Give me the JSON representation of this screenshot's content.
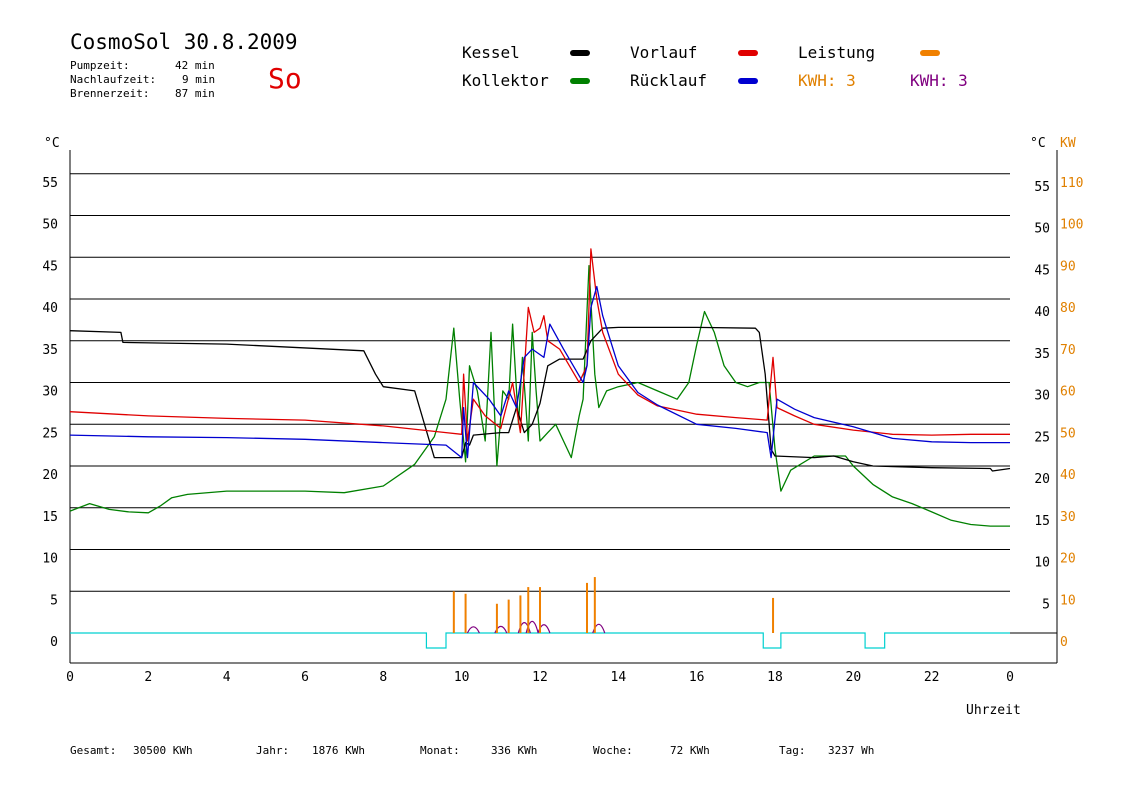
{
  "header": {
    "title": "CosmoSol 30.8.2009",
    "pumpzeit_label": "Pumpzeit:",
    "pumpzeit_value": "42 min",
    "nachlaufzeit_label": "Nachlaufzeit:",
    "nachlaufzeit_value": "9 min",
    "brennerzeit_label": "Brennerzeit:",
    "brennerzeit_value": "87 min",
    "day": "So"
  },
  "legend": {
    "kessel": "Kessel",
    "kollektor": "Kollektor",
    "vorlauf": "Vorlauf",
    "ruecklauf": "Rücklauf",
    "leistung": "Leistung",
    "kwh1": "KWH: 3",
    "kwh2": "KWH: 3"
  },
  "colors": {
    "kessel": "#000000",
    "kollektor": "#008000",
    "vorlauf": "#e00000",
    "ruecklauf": "#0000d0",
    "leistung": "#f08000",
    "kwh_orange": "#e08000",
    "kwh_purple": "#800080",
    "baseline": "#00d0d0"
  },
  "footer": {
    "gesamt_label": "Gesamt:",
    "gesamt_value": "30500 KWh",
    "jahr_label": "Jahr:",
    "jahr_value": "1876 KWh",
    "monat_label": "Monat:",
    "monat_value": "336 KWh",
    "woche_label": "Woche:",
    "woche_value": "72 KWh",
    "tag_label": "Tag:",
    "tag_value": "3237 Wh"
  },
  "chart_data": {
    "type": "line",
    "xlabel": "Uhrzeit",
    "ylabel_left": "°C",
    "ylabel_right_1": "°C",
    "ylabel_right_2": "KW",
    "x_ticks": [
      "0",
      "2",
      "4",
      "6",
      "8",
      "10",
      "12",
      "14",
      "16",
      "18",
      "20",
      "22",
      "0"
    ],
    "y_ticks_left": [
      "0",
      "5",
      "10",
      "15",
      "20",
      "25",
      "30",
      "35",
      "40",
      "45",
      "50",
      "55"
    ],
    "y_ticks_right_c": [
      "5",
      "10",
      "15",
      "20",
      "25",
      "30",
      "35",
      "40",
      "45",
      "50",
      "55"
    ],
    "y_ticks_right_kw": [
      "0",
      "10",
      "20",
      "30",
      "40",
      "50",
      "60",
      "70",
      "80",
      "90",
      "100",
      "110"
    ],
    "xlim": [
      0,
      24
    ],
    "ylim": [
      -3.5,
      59
    ],
    "grid": true,
    "series": [
      {
        "name": "Kessel",
        "key": "kessel",
        "points": [
          [
            0,
            36.2
          ],
          [
            1.3,
            36
          ],
          [
            1.35,
            34.8
          ],
          [
            4,
            34.6
          ],
          [
            7.5,
            33.8
          ],
          [
            7.8,
            31
          ],
          [
            8,
            29.5
          ],
          [
            8.8,
            29
          ],
          [
            9.05,
            25
          ],
          [
            9.3,
            21
          ],
          [
            10,
            21
          ],
          [
            10.1,
            22.8
          ],
          [
            10.2,
            22.5
          ],
          [
            10.3,
            23.7
          ],
          [
            11,
            24
          ],
          [
            11.2,
            24
          ],
          [
            11.4,
            27
          ],
          [
            11.6,
            24
          ],
          [
            11.8,
            25
          ],
          [
            12,
            27.5
          ],
          [
            12.2,
            32
          ],
          [
            12.5,
            32.8
          ],
          [
            13.1,
            32.8
          ],
          [
            13.3,
            35
          ],
          [
            13.6,
            36.5
          ],
          [
            14,
            36.6
          ],
          [
            16,
            36.6
          ],
          [
            17.5,
            36.5
          ],
          [
            17.6,
            36
          ],
          [
            17.75,
            31
          ],
          [
            17.9,
            22
          ],
          [
            18,
            21.2
          ],
          [
            19,
            21
          ],
          [
            19.5,
            21.2
          ],
          [
            20,
            20.5
          ],
          [
            20.5,
            20
          ],
          [
            22,
            19.8
          ],
          [
            23.5,
            19.7
          ],
          [
            23.55,
            19.4
          ],
          [
            24,
            19.7
          ]
        ]
      },
      {
        "name": "Vorlauf",
        "key": "vorlauf",
        "points": [
          [
            0,
            26.5
          ],
          [
            2,
            26
          ],
          [
            4,
            25.7
          ],
          [
            6,
            25.5
          ],
          [
            8,
            24.8
          ],
          [
            9.6,
            24
          ],
          [
            10,
            23.8
          ],
          [
            10.05,
            31
          ],
          [
            10.15,
            23
          ],
          [
            10.3,
            28
          ],
          [
            10.6,
            26
          ],
          [
            11,
            24.5
          ],
          [
            11.3,
            30
          ],
          [
            11.5,
            24
          ],
          [
            11.7,
            39
          ],
          [
            11.85,
            36
          ],
          [
            12,
            36.5
          ],
          [
            12.1,
            38
          ],
          [
            12.2,
            35
          ],
          [
            12.5,
            34
          ],
          [
            13,
            30
          ],
          [
            13.2,
            32
          ],
          [
            13.3,
            46
          ],
          [
            13.45,
            40
          ],
          [
            13.6,
            36
          ],
          [
            14,
            31
          ],
          [
            14.5,
            28.5
          ],
          [
            15,
            27.2
          ],
          [
            16,
            26.2
          ],
          [
            17,
            25.8
          ],
          [
            17.8,
            25.5
          ],
          [
            17.95,
            33
          ],
          [
            18.05,
            27
          ],
          [
            18.5,
            26
          ],
          [
            19,
            25
          ],
          [
            20,
            24.3
          ],
          [
            21,
            23.8
          ],
          [
            22,
            23.7
          ],
          [
            23,
            23.8
          ],
          [
            24,
            23.8
          ]
        ]
      },
      {
        "name": "Rücklauf",
        "key": "ruecklauf",
        "points": [
          [
            0,
            23.7
          ],
          [
            2,
            23.5
          ],
          [
            4,
            23.4
          ],
          [
            6,
            23.2
          ],
          [
            8,
            22.8
          ],
          [
            9.6,
            22.5
          ],
          [
            10,
            21
          ],
          [
            10.05,
            27
          ],
          [
            10.15,
            21
          ],
          [
            10.3,
            30
          ],
          [
            10.7,
            28
          ],
          [
            11,
            26
          ],
          [
            11.2,
            29
          ],
          [
            11.4,
            27
          ],
          [
            11.6,
            33
          ],
          [
            11.8,
            34
          ],
          [
            12.1,
            33
          ],
          [
            12.25,
            37
          ],
          [
            12.6,
            34
          ],
          [
            13.1,
            30
          ],
          [
            13.2,
            32
          ],
          [
            13.3,
            39
          ],
          [
            13.45,
            41.5
          ],
          [
            13.6,
            38
          ],
          [
            14,
            32
          ],
          [
            14.5,
            28.8
          ],
          [
            15,
            27.3
          ],
          [
            16,
            25
          ],
          [
            17,
            24.5
          ],
          [
            17.8,
            24
          ],
          [
            17.9,
            21
          ],
          [
            18.05,
            28
          ],
          [
            18.5,
            26.8
          ],
          [
            19,
            25.8
          ],
          [
            20,
            24.7
          ],
          [
            21,
            23.3
          ],
          [
            22,
            22.9
          ],
          [
            23,
            22.8
          ],
          [
            24,
            22.8
          ]
        ]
      },
      {
        "name": "Kollektor",
        "key": "kollektor",
        "points": [
          [
            0,
            14.6
          ],
          [
            0.5,
            15.5
          ],
          [
            1,
            14.8
          ],
          [
            1.5,
            14.5
          ],
          [
            2,
            14.4
          ],
          [
            2.3,
            15.2
          ],
          [
            2.6,
            16.2
          ],
          [
            3,
            16.6
          ],
          [
            4,
            17
          ],
          [
            5,
            17
          ],
          [
            6,
            17
          ],
          [
            7,
            16.8
          ],
          [
            8,
            17.6
          ],
          [
            8.8,
            20.2
          ],
          [
            9.3,
            23.5
          ],
          [
            9.6,
            28
          ],
          [
            9.8,
            36.5
          ],
          [
            9.95,
            28
          ],
          [
            10.1,
            20.5
          ],
          [
            10.2,
            32
          ],
          [
            10.4,
            29
          ],
          [
            10.6,
            23
          ],
          [
            10.75,
            36
          ],
          [
            10.9,
            20
          ],
          [
            11.05,
            29
          ],
          [
            11.2,
            28
          ],
          [
            11.3,
            37
          ],
          [
            11.45,
            25
          ],
          [
            11.55,
            33
          ],
          [
            11.7,
            23
          ],
          [
            11.8,
            36
          ],
          [
            11.9,
            29
          ],
          [
            12,
            23
          ],
          [
            12.2,
            24
          ],
          [
            12.4,
            25
          ],
          [
            12.6,
            23
          ],
          [
            12.8,
            21
          ],
          [
            13,
            26
          ],
          [
            13.1,
            28
          ],
          [
            13.25,
            44
          ],
          [
            13.4,
            31
          ],
          [
            13.5,
            27
          ],
          [
            13.7,
            29
          ],
          [
            14,
            29.5
          ],
          [
            14.5,
            30
          ],
          [
            15,
            29
          ],
          [
            15.5,
            28
          ],
          [
            15.8,
            30
          ],
          [
            16,
            34.5
          ],
          [
            16.2,
            38.5
          ],
          [
            16.45,
            36
          ],
          [
            16.7,
            32
          ],
          [
            17,
            30
          ],
          [
            17.3,
            29.5
          ],
          [
            17.6,
            30
          ],
          [
            17.85,
            30
          ],
          [
            18,
            22
          ],
          [
            18.15,
            17
          ],
          [
            18.4,
            19.5
          ],
          [
            19,
            21.2
          ],
          [
            19.8,
            21.2
          ],
          [
            20,
            20
          ],
          [
            20.5,
            17.8
          ],
          [
            21,
            16.3
          ],
          [
            21.5,
            15.5
          ],
          [
            22,
            14.5
          ],
          [
            22.5,
            13.5
          ],
          [
            23,
            13
          ],
          [
            23.5,
            12.8
          ],
          [
            24,
            12.8
          ]
        ]
      }
    ],
    "leistung_spikes": [
      [
        9.8,
        5
      ],
      [
        10.1,
        4.7
      ],
      [
        10.9,
        3.5
      ],
      [
        11.2,
        4
      ],
      [
        11.5,
        4.5
      ],
      [
        11.7,
        5.5
      ],
      [
        12,
        5.5
      ],
      [
        13.2,
        6
      ],
      [
        13.4,
        6.7
      ],
      [
        17.95,
        4.2
      ]
    ],
    "purple_bumps": [
      [
        10.3,
        1
      ],
      [
        11.0,
        1.1
      ],
      [
        11.6,
        2
      ],
      [
        11.8,
        2.3
      ],
      [
        12.1,
        1.5
      ],
      [
        13.5,
        1.6
      ]
    ],
    "baseline_pulses": [
      [
        9.1,
        9.6
      ],
      [
        17.7,
        18.15
      ],
      [
        20.3,
        20.8
      ]
    ]
  }
}
